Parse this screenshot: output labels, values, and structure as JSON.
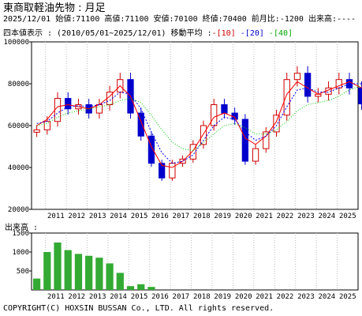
{
  "header": {
    "title": "東商取軽油先物 : 月足",
    "quote_line": "2025/12/01 始値:71100 高値:71100 安値:70100 終値:70400 前月比:-1200 出来高:----"
  },
  "legend": {
    "prefix": "四本値表示 : (2010/05/01~2025/12/01) 移動平均 :",
    "ma10_label": "[10]",
    "ma20_label": "[20]",
    "ma40_label": "[40]"
  },
  "volume_label": "出来高 :",
  "copyright": "COPYRIGHT(C) HOXSIN BUSSAN Co., LTD. All rights reserved.",
  "colors": {
    "up": "#cc0000",
    "down": "#0000cc",
    "ma10": "#ff0000",
    "ma20": "#0000ff",
    "ma40": "#00cc00",
    "volume": "#33aa33",
    "grid": "#bbbbbb"
  },
  "chart_data": [
    {
      "type": "candlestick",
      "x": [
        "2010/05",
        "2010/11",
        "2011/05",
        "2011/11",
        "2012/05",
        "2012/11",
        "2013/05",
        "2013/11",
        "2014/05",
        "2014/11",
        "2015/05",
        "2015/11",
        "2016/05",
        "2016/11",
        "2017/05",
        "2017/11",
        "2018/05",
        "2018/11",
        "2019/05",
        "2019/11",
        "2020/05",
        "2020/11",
        "2021/05",
        "2021/11",
        "2022/05",
        "2022/11",
        "2023/05",
        "2023/11",
        "2024/05",
        "2024/11",
        "2025/05",
        "2025/12"
      ],
      "values": [
        58000,
        62000,
        73000,
        68000,
        70000,
        66000,
        70000,
        76000,
        82000,
        66000,
        55000,
        42000,
        35000,
        42000,
        44000,
        51000,
        60000,
        70000,
        66000,
        63000,
        43000,
        49000,
        57000,
        65000,
        82000,
        85000,
        74000,
        75000,
        78000,
        82000,
        78000,
        70400
      ],
      "ma_series": [
        {
          "name": "[10]",
          "values": [
            60000,
            63000,
            69000,
            70000,
            69000,
            68000,
            70000,
            74000,
            79000,
            74000,
            62000,
            50000,
            41000,
            40000,
            43000,
            48000,
            56000,
            64000,
            66000,
            64000,
            54000,
            51000,
            55000,
            62000,
            75000,
            81000,
            78000,
            75000,
            77000,
            79000,
            81000,
            78000
          ]
        },
        {
          "name": "[20]",
          "values": [
            61000,
            62000,
            66000,
            69000,
            69500,
            69000,
            70000,
            72000,
            76000,
            75000,
            68000,
            57000,
            47000,
            42000,
            43000,
            46000,
            53000,
            60000,
            64000,
            63000,
            57000,
            53000,
            55000,
            60000,
            69000,
            77000,
            78000,
            76000,
            76000,
            78000,
            80000,
            80000
          ]
        },
        {
          "name": "[40]",
          "values": [
            60000,
            61000,
            64000,
            66000,
            67000,
            68000,
            69000,
            70000,
            72000,
            73000,
            71000,
            65000,
            58000,
            52000,
            49000,
            48000,
            52000,
            56000,
            60000,
            61000,
            59000,
            56000,
            56000,
            58000,
            62000,
            67000,
            70000,
            71000,
            72000,
            74000,
            77000,
            79000
          ]
        }
      ],
      "yticks": [
        20000,
        40000,
        60000,
        80000,
        100000
      ],
      "ylim": [
        20000,
        100000
      ],
      "xticks": [
        "2011",
        "2012",
        "2013",
        "2014",
        "2015",
        "2016",
        "2017",
        "2018",
        "2019",
        "2020",
        "2021",
        "2022",
        "2023",
        "2024",
        "2025"
      ]
    },
    {
      "type": "bar",
      "x": [
        "2010/05",
        "2010/11",
        "2011/05",
        "2011/11",
        "2012/05",
        "2012/11",
        "2013/05",
        "2013/11",
        "2014/05",
        "2014/11",
        "2015/05",
        "2015/11"
      ],
      "values": [
        300,
        1000,
        1250,
        1050,
        950,
        900,
        850,
        700,
        450,
        100,
        150,
        80
      ],
      "yticks": [
        500,
        1000,
        1500
      ],
      "ylim": [
        0,
        1500
      ]
    }
  ]
}
